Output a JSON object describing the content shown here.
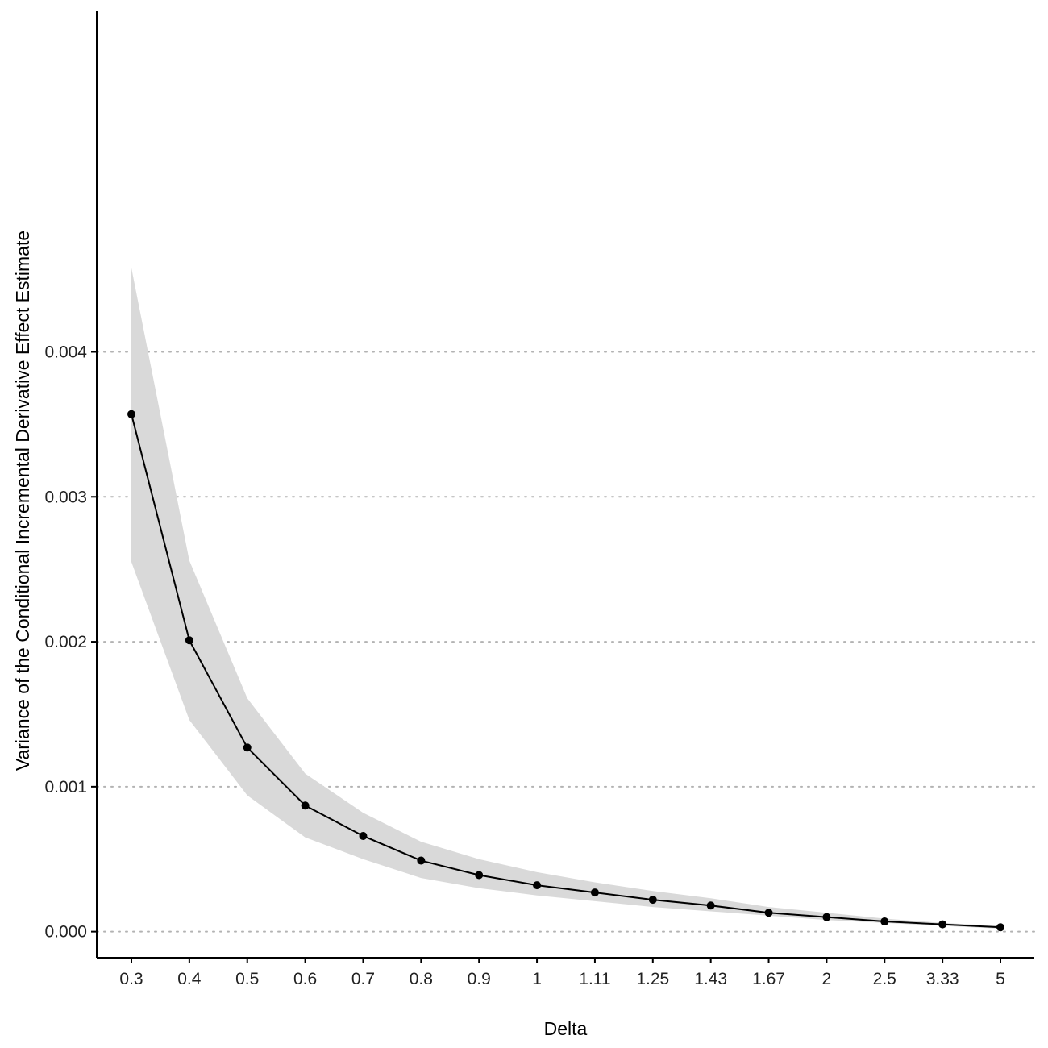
{
  "chart_data": {
    "type": "line",
    "xlabel": "Delta",
    "ylabel": "Variance of the Conditional Incremental Derivative Effect Estimate",
    "x_scale": "categorical",
    "categories": [
      "0.3",
      "0.4",
      "0.5",
      "0.6",
      "0.7",
      "0.8",
      "0.9",
      "1",
      "1.11",
      "1.25",
      "1.43",
      "1.67",
      "2",
      "2.5",
      "3.33",
      "5"
    ],
    "series": [
      {
        "values": [
          0.00357,
          0.00201,
          0.00127,
          0.00087,
          0.00066,
          0.00049,
          0.00039,
          0.00032,
          0.00027,
          0.00022,
          0.00018,
          0.00013,
          0.0001,
          7e-05,
          5e-05,
          3e-05
        ],
        "lower": [
          0.00255,
          0.00146,
          0.00094,
          0.00065,
          0.0005,
          0.00037,
          0.0003,
          0.00025,
          0.00021,
          0.00017,
          0.00014,
          0.00011,
          8e-05,
          6e-05,
          4e-05,
          2e-05
        ],
        "upper": [
          0.00458,
          0.00256,
          0.00161,
          0.00109,
          0.00082,
          0.00062,
          0.0005,
          0.00041,
          0.00034,
          0.00028,
          0.00023,
          0.00017,
          0.00013,
          9e-05,
          6e-05,
          4e-05
        ]
      }
    ],
    "yticks": [
      "0.000",
      "0.001",
      "0.002",
      "0.003",
      "0.004"
    ],
    "ylim": [
      -0.00018,
      0.00635
    ],
    "grid": "horizontal dotted",
    "line_color": "#000000",
    "ribbon_color": "#d9d9d9",
    "grid_color": "#b3b3b3"
  }
}
